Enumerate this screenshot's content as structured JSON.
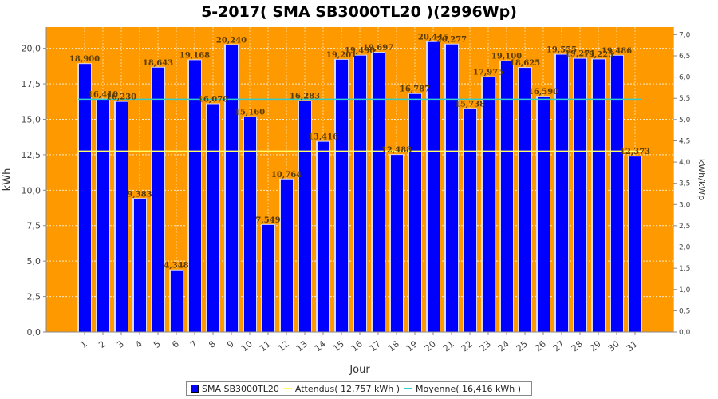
{
  "chart_data": {
    "type": "bar",
    "title": "5-2017( SMA SB3000TL20 )(2996Wp)",
    "xlabel": "Jour",
    "ylabel": "kWh",
    "y2label": "kWh/kWp",
    "ylim": [
      0,
      21.5
    ],
    "y2lim": [
      0,
      7.176
    ],
    "yticks": [
      "0,0",
      "2,5",
      "5,0",
      "7,5",
      "10,0",
      "12,5",
      "15,0",
      "17,5",
      "20,0"
    ],
    "y2ticks": [
      "0,0",
      "0,5",
      "1,0",
      "1,5",
      "2,0",
      "2,5",
      "3,0",
      "3,5",
      "4,0",
      "4,5",
      "5,0",
      "5,5",
      "6,0",
      "6,5",
      "7,0"
    ],
    "categories": [
      "1",
      "2",
      "3",
      "4",
      "5",
      "6",
      "7",
      "8",
      "9",
      "10",
      "11",
      "12",
      "13",
      "14",
      "15",
      "16",
      "17",
      "18",
      "19",
      "20",
      "21",
      "22",
      "23",
      "24",
      "25",
      "26",
      "27",
      "28",
      "29",
      "30",
      "31"
    ],
    "series": [
      {
        "name": "SMA SB3000TL20",
        "values": [
          18.9,
          16.41,
          16.23,
          9.383,
          18.643,
          4.348,
          19.168,
          16.07,
          20.24,
          15.16,
          7.549,
          10.764,
          16.283,
          13.416,
          19.201,
          19.49,
          19.697,
          12.488,
          16.787,
          20.445,
          20.277,
          15.738,
          17.975,
          19.1,
          18.625,
          16.59,
          19.555,
          19.271,
          19.225,
          19.486,
          12.373
        ],
        "labels": [
          "18,900",
          "16,410",
          "16,230",
          "9,383",
          "18,643",
          "4,348",
          "19,168",
          "16,070",
          "20,240",
          "15,160",
          "7,549",
          "10,764",
          "16,283",
          "13,416",
          "19,201",
          "19,490",
          "19,697",
          "12,488",
          "16,787",
          "20,445",
          "20,277",
          "15,738",
          "17,975",
          "19,100",
          "18,625",
          "16,590",
          "19,555",
          "19,271",
          "19,225",
          "19,486",
          "12,373"
        ]
      }
    ],
    "reference_lines": [
      {
        "name": "Attendus",
        "value": 12.757,
        "legend": "Attendus( 12,757 kWh )",
        "color": "#ffff66"
      },
      {
        "name": "Moyenne",
        "value": 16.416,
        "legend": "Moyenne( 16,416 kWh )",
        "color": "#33cccc"
      }
    ],
    "legend_position": "bottom-center",
    "colors": {
      "plot_bg": "#ff9900",
      "bar": "#0000ff",
      "grid": "#ffffff"
    }
  }
}
